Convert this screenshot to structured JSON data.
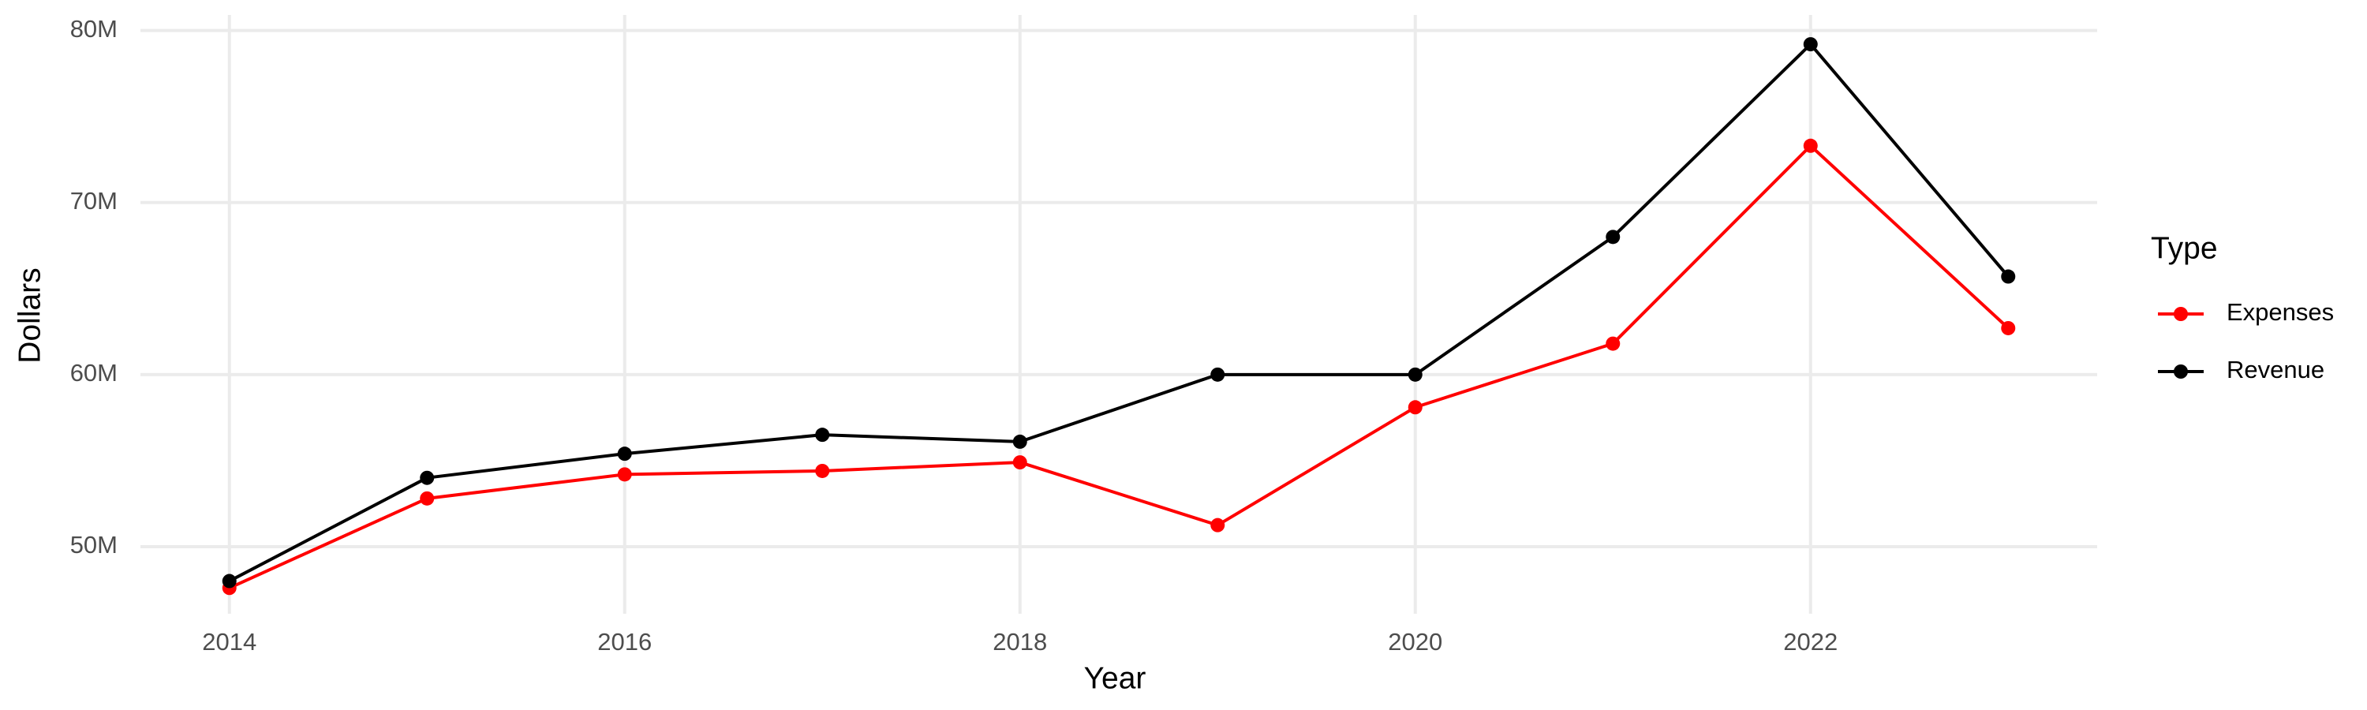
{
  "chart_data": {
    "type": "line",
    "x_label": "Year",
    "y_label": "Dollars",
    "x": [
      2014,
      2015,
      2016,
      2017,
      2018,
      2019,
      2020,
      2021,
      2022,
      2023
    ],
    "series": [
      {
        "name": "Expenses",
        "color": "#ff0000",
        "values": [
          47600000,
          52800000,
          54200000,
          54400000,
          54900000,
          51250000,
          58100000,
          61800000,
          73300000,
          62700000
        ]
      },
      {
        "name": "Revenue",
        "color": "#000000",
        "values": [
          48000000,
          54000000,
          55400000,
          56500000,
          56100000,
          60000000,
          60000000,
          68000000,
          79200000,
          65700000
        ]
      }
    ],
    "legend_title": "Type",
    "legend": "right",
    "xlim": [
      2013.55,
      2023.45
    ],
    "xticks": [
      2014,
      2016,
      2018,
      2020,
      2022
    ],
    "ylim": [
      46100000,
      80900000
    ],
    "yticks": [
      {
        "value": 50000000,
        "label": "50M"
      },
      {
        "value": 60000000,
        "label": "60M"
      },
      {
        "value": 70000000,
        "label": "70M"
      },
      {
        "value": 80000000,
        "label": "80M"
      }
    ],
    "grid": true
  }
}
